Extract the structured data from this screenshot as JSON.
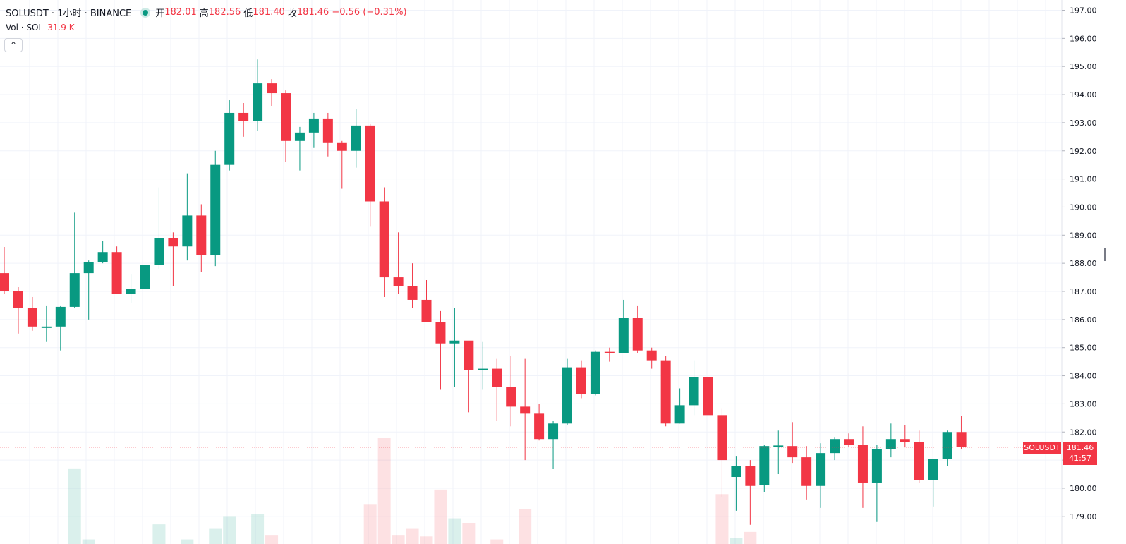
{
  "header": {
    "symbol_line": "SOLUSDT · 1小时 · BINANCE",
    "open_label": "开",
    "open": "182.01",
    "high_label": "高",
    "high": "182.56",
    "low_label": "低",
    "low": "181.40",
    "close_label": "收",
    "close": "181.46",
    "change": "−0.56 (−0.31%)"
  },
  "volume": {
    "label": "Vol · SOL",
    "value": "31.9 K"
  },
  "collapse_glyph": "⌃",
  "price_marker": {
    "symbol": "SOLUSDT",
    "price": "181.46",
    "countdown": "41:57"
  },
  "colors": {
    "up": "#089981",
    "down": "#f23645",
    "grid": "#f0f3fa",
    "text": "#131722"
  },
  "chart_data": {
    "type": "candlestick",
    "y_ticks": [
      "197.00",
      "196.00",
      "195.00",
      "194.00",
      "193.00",
      "192.00",
      "191.00",
      "190.00",
      "189.00",
      "188.00",
      "187.00",
      "186.00",
      "185.00",
      "184.00",
      "183.00",
      "182.00",
      "181.00",
      "180.00",
      "179.00"
    ],
    "ylim": [
      178.7,
      197.3
    ],
    "last_price": 181.46,
    "candles": [
      [
        187.65,
        188.58,
        186.9,
        187.0
      ],
      [
        187.0,
        187.15,
        185.5,
        186.4
      ],
      [
        186.4,
        186.8,
        185.6,
        185.75
      ],
      [
        185.75,
        186.5,
        185.2,
        185.75
      ],
      [
        185.75,
        186.5,
        184.9,
        186.45
      ],
      [
        186.45,
        189.8,
        186.4,
        187.65
      ],
      [
        187.65,
        188.1,
        186.0,
        188.05
      ],
      [
        188.05,
        188.8,
        188.0,
        188.4
      ],
      [
        188.4,
        188.6,
        186.9,
        186.9
      ],
      [
        186.9,
        187.6,
        186.6,
        187.1
      ],
      [
        187.1,
        187.95,
        186.5,
        187.95
      ],
      [
        187.95,
        190.7,
        187.8,
        188.9
      ],
      [
        188.9,
        189.1,
        187.2,
        188.6
      ],
      [
        188.6,
        191.2,
        188.1,
        189.7
      ],
      [
        189.7,
        190.1,
        187.7,
        188.3
      ],
      [
        188.3,
        192.0,
        187.9,
        191.5
      ],
      [
        191.5,
        193.8,
        191.3,
        193.35
      ],
      [
        193.35,
        193.7,
        192.5,
        193.05
      ],
      [
        193.05,
        195.25,
        192.7,
        194.4
      ],
      [
        194.4,
        194.55,
        193.6,
        194.05
      ],
      [
        194.05,
        194.15,
        191.6,
        192.35
      ],
      [
        192.35,
        192.85,
        191.3,
        192.65
      ],
      [
        192.65,
        193.35,
        192.1,
        193.15
      ],
      [
        193.15,
        193.35,
        191.8,
        192.3
      ],
      [
        192.3,
        192.35,
        190.65,
        192.0
      ],
      [
        192.0,
        193.5,
        191.4,
        192.9
      ],
      [
        192.9,
        192.95,
        189.3,
        190.2
      ],
      [
        190.2,
        190.7,
        186.8,
        187.5
      ],
      [
        187.5,
        189.1,
        186.9,
        187.2
      ],
      [
        187.2,
        188.0,
        186.4,
        186.7
      ],
      [
        186.7,
        187.4,
        185.9,
        185.9
      ],
      [
        185.9,
        186.3,
        183.5,
        185.15
      ],
      [
        185.15,
        186.4,
        183.6,
        185.25
      ],
      [
        185.25,
        185.2,
        182.7,
        184.2
      ],
      [
        184.2,
        185.2,
        183.5,
        184.25
      ],
      [
        184.25,
        184.6,
        182.4,
        183.6
      ],
      [
        183.6,
        184.7,
        182.2,
        182.9
      ],
      [
        182.9,
        184.6,
        181.0,
        182.65
      ],
      [
        182.65,
        183.0,
        181.7,
        181.75
      ],
      [
        181.75,
        182.4,
        180.7,
        182.3
      ],
      [
        182.3,
        184.6,
        182.25,
        184.3
      ],
      [
        184.3,
        184.55,
        183.2,
        183.35
      ],
      [
        183.35,
        184.9,
        183.3,
        184.85
      ],
      [
        184.85,
        185.0,
        184.5,
        184.8
      ],
      [
        184.8,
        186.7,
        184.8,
        186.05
      ],
      [
        186.05,
        186.5,
        184.8,
        184.9
      ],
      [
        184.9,
        185.0,
        184.25,
        184.55
      ],
      [
        184.55,
        184.7,
        182.2,
        182.3
      ],
      [
        182.3,
        183.55,
        182.3,
        182.95
      ],
      [
        182.95,
        184.55,
        182.6,
        183.95
      ],
      [
        183.95,
        185.0,
        182.2,
        182.6
      ],
      [
        182.6,
        182.85,
        179.7,
        181.0
      ],
      [
        180.4,
        181.15,
        179.2,
        180.8
      ],
      [
        180.8,
        181.0,
        178.7,
        180.08
      ],
      [
        180.1,
        181.55,
        179.85,
        181.5
      ],
      [
        181.5,
        182.05,
        180.5,
        181.52
      ],
      [
        181.5,
        182.35,
        180.9,
        181.1
      ],
      [
        181.1,
        181.5,
        179.6,
        180.08
      ],
      [
        180.08,
        181.6,
        179.3,
        181.25
      ],
      [
        181.25,
        181.8,
        181.0,
        181.75
      ],
      [
        181.75,
        181.95,
        181.45,
        181.55
      ],
      [
        181.55,
        182.2,
        179.3,
        180.2
      ],
      [
        180.2,
        181.55,
        178.8,
        181.4
      ],
      [
        181.4,
        182.3,
        181.1,
        181.75
      ],
      [
        181.75,
        182.25,
        181.45,
        181.65
      ],
      [
        181.65,
        182.05,
        180.2,
        180.3
      ],
      [
        180.3,
        181.05,
        179.35,
        181.05
      ],
      [
        181.05,
        182.05,
        180.8,
        182.0
      ],
      [
        182.0,
        182.56,
        181.4,
        181.46
      ]
    ],
    "volume_bars": [
      {
        "i": 5,
        "v": 0.5,
        "up": true
      },
      {
        "i": 6,
        "v": 0.03,
        "up": true
      },
      {
        "i": 11,
        "v": 0.13,
        "up": true
      },
      {
        "i": 13,
        "v": 0.03,
        "up": true
      },
      {
        "i": 15,
        "v": 0.1,
        "up": true
      },
      {
        "i": 16,
        "v": 0.18,
        "up": true
      },
      {
        "i": 18,
        "v": 0.2,
        "up": true
      },
      {
        "i": 19,
        "v": 0.06,
        "up": false
      },
      {
        "i": 26,
        "v": 0.26,
        "up": false
      },
      {
        "i": 27,
        "v": 0.7,
        "up": false
      },
      {
        "i": 28,
        "v": 0.06,
        "up": false
      },
      {
        "i": 29,
        "v": 0.1,
        "up": false
      },
      {
        "i": 30,
        "v": 0.05,
        "up": false
      },
      {
        "i": 31,
        "v": 0.36,
        "up": false
      },
      {
        "i": 32,
        "v": 0.17,
        "up": true
      },
      {
        "i": 33,
        "v": 0.14,
        "up": false
      },
      {
        "i": 35,
        "v": 0.03,
        "up": false
      },
      {
        "i": 37,
        "v": 0.23,
        "up": false
      },
      {
        "i": 51,
        "v": 0.33,
        "up": false
      },
      {
        "i": 52,
        "v": 0.04,
        "up": true
      },
      {
        "i": 53,
        "v": 0.08,
        "up": false
      }
    ]
  }
}
